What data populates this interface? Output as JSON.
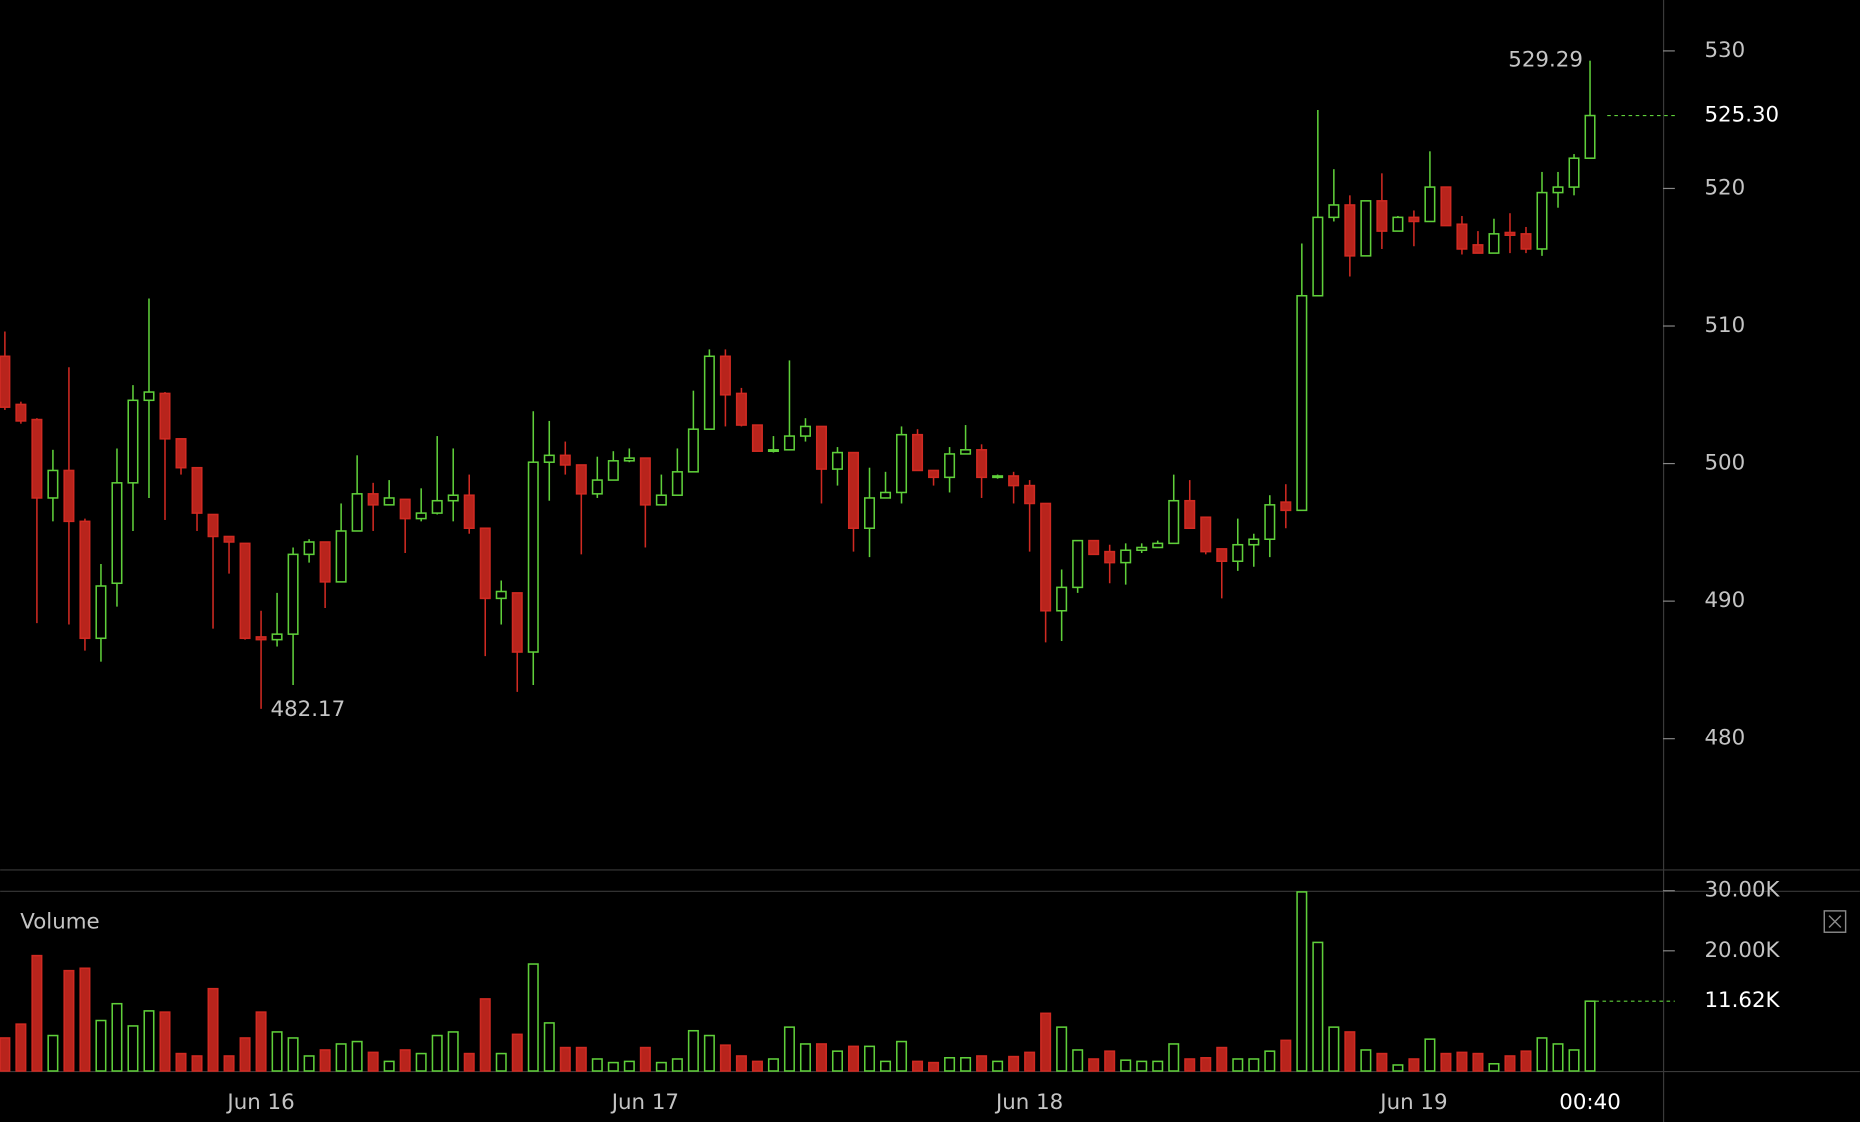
{
  "chart_data": {
    "type": "candlestick",
    "volume_title": "Volume",
    "countdown": "00:40",
    "categories": [
      null,
      null,
      null,
      null,
      null,
      null,
      null,
      null,
      null,
      null,
      null,
      null,
      null,
      null,
      null,
      null,
      "Jun 16",
      null,
      null,
      null,
      null,
      null,
      null,
      null,
      null,
      null,
      null,
      null,
      null,
      null,
      null,
      null,
      null,
      null,
      null,
      null,
      null,
      null,
      null,
      null,
      "Jun 17",
      null,
      null,
      null,
      null,
      null,
      null,
      null,
      null,
      null,
      null,
      null,
      null,
      null,
      null,
      null,
      null,
      null,
      null,
      null,
      null,
      null,
      null,
      null,
      "Jun 18",
      null,
      null,
      null,
      null,
      null,
      null,
      null,
      null,
      null,
      null,
      null,
      null,
      null,
      null,
      null,
      null,
      null,
      null,
      null,
      null,
      null,
      null,
      null,
      "Jun 19",
      null,
      null,
      null,
      null,
      null,
      null,
      null,
      null,
      null,
      null,
      null
    ],
    "open": [
      507.8,
      504.3,
      503.2,
      497.5,
      499.5,
      495.8,
      487.3,
      491.3,
      498.6,
      504.6,
      505.1,
      501.8,
      499.7,
      496.3,
      494.7,
      494.2,
      487.4,
      487.2,
      487.6,
      493.4,
      494.3,
      491.4,
      495.1,
      497.8,
      497.0,
      497.4,
      496.0,
      496.4,
      497.3,
      497.7,
      495.3,
      490.2,
      490.6,
      486.3,
      500.1,
      500.6,
      499.9,
      497.8,
      498.8,
      500.2,
      500.4,
      497.0,
      497.7,
      499.4,
      502.5,
      507.8,
      505.1,
      502.8,
      500.9,
      501.0,
      502.0,
      502.7,
      499.6,
      500.8,
      495.3,
      497.5,
      497.9,
      502.1,
      499.5,
      499.0,
      500.7,
      501.0,
      499.0,
      499.1,
      498.4,
      497.1,
      489.3,
      491.0,
      494.4,
      493.6,
      492.8,
      493.7,
      493.9,
      494.2,
      497.3,
      496.1,
      493.8,
      492.9,
      494.1,
      494.5,
      497.2,
      496.6,
      512.2,
      517.9,
      518.8,
      515.1,
      519.1,
      516.9,
      517.9,
      517.6,
      520.1,
      517.4,
      515.9,
      515.3,
      516.8,
      516.7,
      515.6,
      519.7,
      520.1,
      522.2
    ],
    "high": [
      509.6,
      504.5,
      503.3,
      501.0,
      507.0,
      496.0,
      492.7,
      501.1,
      505.7,
      512.0,
      505.2,
      501.8,
      499.7,
      496.3,
      494.7,
      494.2,
      489.3,
      490.6,
      493.9,
      494.5,
      494.3,
      497.1,
      500.6,
      498.6,
      498.8,
      497.4,
      498.2,
      502.0,
      501.1,
      499.2,
      495.3,
      491.5,
      490.6,
      503.8,
      503.1,
      501.6,
      499.9,
      500.5,
      500.9,
      501.1,
      500.4,
      499.2,
      501.1,
      505.3,
      508.3,
      508.3,
      505.5,
      502.8,
      502.0,
      507.5,
      503.3,
      502.7,
      501.2,
      500.8,
      499.7,
      499.4,
      502.7,
      502.5,
      499.5,
      501.2,
      502.8,
      501.4,
      499.2,
      499.4,
      498.8,
      497.1,
      492.3,
      494.4,
      494.4,
      494.1,
      494.2,
      494.2,
      494.4,
      499.2,
      498.8,
      496.1,
      493.8,
      496.0,
      494.9,
      497.7,
      498.5,
      516.0,
      525.7,
      521.4,
      519.5,
      519.1,
      521.1,
      518.0,
      518.4,
      522.7,
      520.1,
      518.0,
      516.9,
      517.8,
      518.2,
      517.2,
      521.2,
      521.2,
      522.5,
      529.29
    ],
    "low": [
      503.9,
      502.9,
      488.4,
      495.8,
      488.3,
      486.4,
      485.6,
      489.6,
      495.1,
      497.5,
      495.9,
      499.2,
      495.1,
      488.0,
      492.0,
      487.2,
      482.17,
      486.7,
      483.9,
      492.8,
      489.5,
      491.4,
      495.1,
      495.1,
      497.0,
      493.5,
      495.8,
      496.3,
      495.8,
      494.9,
      486.0,
      488.3,
      483.4,
      483.9,
      497.3,
      499.2,
      493.4,
      497.5,
      498.8,
      500.1,
      493.9,
      497.0,
      497.7,
      499.4,
      502.5,
      502.7,
      502.7,
      500.9,
      500.8,
      501.0,
      501.6,
      497.1,
      498.4,
      493.6,
      493.2,
      497.5,
      497.1,
      499.5,
      498.4,
      497.9,
      500.7,
      497.5,
      498.9,
      497.1,
      493.6,
      487.0,
      487.1,
      490.6,
      493.4,
      491.3,
      491.2,
      493.5,
      493.9,
      494.2,
      495.3,
      493.4,
      490.2,
      492.2,
      492.5,
      493.2,
      495.3,
      496.6,
      512.2,
      517.6,
      513.6,
      515.1,
      515.6,
      516.9,
      515.8,
      517.6,
      517.3,
      515.2,
      515.3,
      515.3,
      515.3,
      515.3,
      515.1,
      518.6,
      519.5,
      522.2
    ],
    "close": [
      504.1,
      503.1,
      497.5,
      499.5,
      495.8,
      487.3,
      491.1,
      498.6,
      504.6,
      505.2,
      501.8,
      499.7,
      496.4,
      494.7,
      494.3,
      487.3,
      487.2,
      487.6,
      493.4,
      494.3,
      491.4,
      495.1,
      497.8,
      497.0,
      497.5,
      496.0,
      496.4,
      497.3,
      497.7,
      495.3,
      490.2,
      490.7,
      486.3,
      500.1,
      500.6,
      499.9,
      497.8,
      498.8,
      500.2,
      500.4,
      497.0,
      497.7,
      499.4,
      502.5,
      507.8,
      505.0,
      502.8,
      500.9,
      501.0,
      502.0,
      502.7,
      499.6,
      500.8,
      495.3,
      497.5,
      497.9,
      502.1,
      499.5,
      499.0,
      500.7,
      501.0,
      499.0,
      499.1,
      498.4,
      497.1,
      489.3,
      491.0,
      494.4,
      493.4,
      492.8,
      493.7,
      493.9,
      494.2,
      497.3,
      495.3,
      493.6,
      492.9,
      494.1,
      494.5,
      497.0,
      496.6,
      512.2,
      517.9,
      518.8,
      515.1,
      519.1,
      516.9,
      517.9,
      517.6,
      520.1,
      517.3,
      515.6,
      515.3,
      516.7,
      516.6,
      515.6,
      519.7,
      520.1,
      522.2,
      525.3
    ],
    "volume": [
      5500,
      7800,
      19200,
      5900,
      16700,
      17100,
      8400,
      11200,
      7500,
      10000,
      9800,
      2900,
      2500,
      13700,
      2500,
      5500,
      9800,
      6500,
      5500,
      2500,
      3500,
      4500,
      4900,
      3100,
      1600,
      3500,
      2900,
      5900,
      6500,
      2900,
      12000,
      2900,
      6100,
      17800,
      8000,
      3900,
      3900,
      2000,
      1400,
      1600,
      3900,
      1400,
      2000,
      6700,
      5900,
      4300,
      2500,
      1600,
      2000,
      7300,
      4500,
      4500,
      3300,
      4100,
      4100,
      1600,
      4900,
      1600,
      1400,
      2200,
      2200,
      2500,
      1600,
      2400,
      3100,
      9600,
      7300,
      3500,
      2000,
      3300,
      1800,
      1600,
      1600,
      4500,
      2000,
      2200,
      3900,
      2000,
      2000,
      3300,
      5100,
      29800,
      21400,
      7300,
      6500,
      3500,
      2900,
      1000,
      2000,
      5300,
      2900,
      3100,
      2900,
      1200,
      2500,
      3300,
      5500,
      4500,
      3500,
      11620
    ],
    "up_color": "#5fcf3a",
    "down_color": "#b8241c",
    "ylim": [
      470.5,
      533.7
    ],
    "yticks": [
      480,
      490,
      500,
      510,
      520,
      530
    ],
    "y2lim": [
      0,
      30000
    ],
    "y2ticks": [
      {
        "value": 20000,
        "label": "20.00K"
      },
      {
        "value": 30000,
        "label": "30.00K"
      }
    ],
    "last_price": {
      "value": 525.3,
      "label": "525.30"
    },
    "last_volume": {
      "value": 11620,
      "label": "11.62K"
    },
    "grid": false
  }
}
